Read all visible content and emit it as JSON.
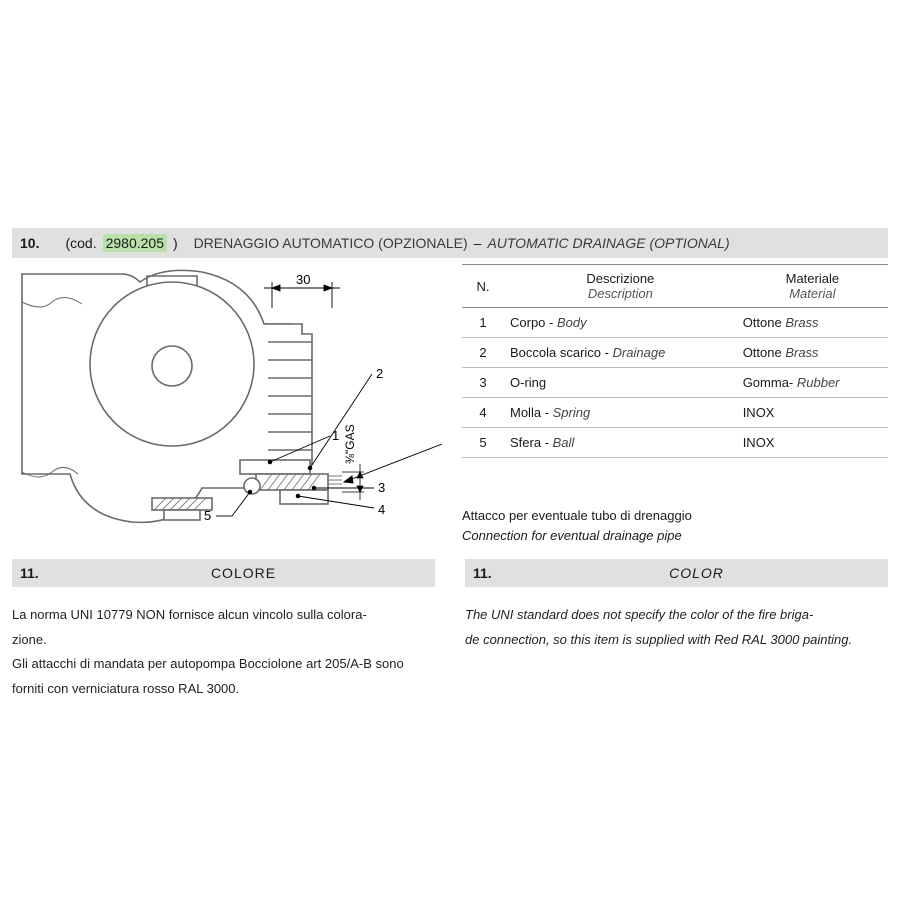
{
  "section10": {
    "number": "10.",
    "code_prefix": "(cod.",
    "code": "2980.205",
    "code_suffix": ")",
    "title_it": "DRENAGGIO AUTOMATICO (OPZIONALE)",
    "sep": "–",
    "title_en": "AUTOMATIC DRAINAGE (OPTIONAL)",
    "diagram": {
      "dim_label": "30",
      "gas_label": "⅜\"GAS",
      "callouts": [
        "1",
        "2",
        "3",
        "4",
        "5"
      ],
      "stroke": "#6a6a6a",
      "stroke_thin": "#888",
      "fill": "#ffffff"
    },
    "table": {
      "col_n": "N.",
      "col_desc_it": "Descrizione",
      "col_desc_en": "Description",
      "col_mat_it": "Materiale",
      "col_mat_en": "Material",
      "rows": [
        {
          "n": "1",
          "desc_it": "Corpo",
          "desc_en": "Body",
          "mat_it": "Ottone",
          "mat_en": "Brass"
        },
        {
          "n": "2",
          "desc_it": "Boccola scarico",
          "desc_en": "Drainage",
          "mat_it": "Ottone",
          "mat_en": "Brass"
        },
        {
          "n": "3",
          "desc_it": "O-ring",
          "desc_en": "",
          "mat_it": "Gomma-",
          "mat_en": "Rubber"
        },
        {
          "n": "4",
          "desc_it": "Molla",
          "desc_en": "Spring",
          "mat_it": "INOX",
          "mat_en": ""
        },
        {
          "n": "5",
          "desc_it": "Sfera",
          "desc_en": "Ball",
          "mat_it": "INOX",
          "mat_en": ""
        }
      ]
    },
    "note_it": "Attacco per eventuale tubo di drenaggio",
    "note_en": "Connection for eventual drainage pipe"
  },
  "section11": {
    "number": "11.",
    "title_it": "COLORE",
    "title_en": "COLOR",
    "body_it": "La norma UNI 10779 NON fornisce alcun vincolo sulla colora-\nzione.\nGli attacchi di mandata per autopompa Bocciolone art 205/A-B sono forniti con verniciatura rosso RAL 3000.",
    "body_en": "The UNI standard does not specify the color of the fire briga-\nde connection, so this item is supplied with Red RAL 3000 painting."
  }
}
